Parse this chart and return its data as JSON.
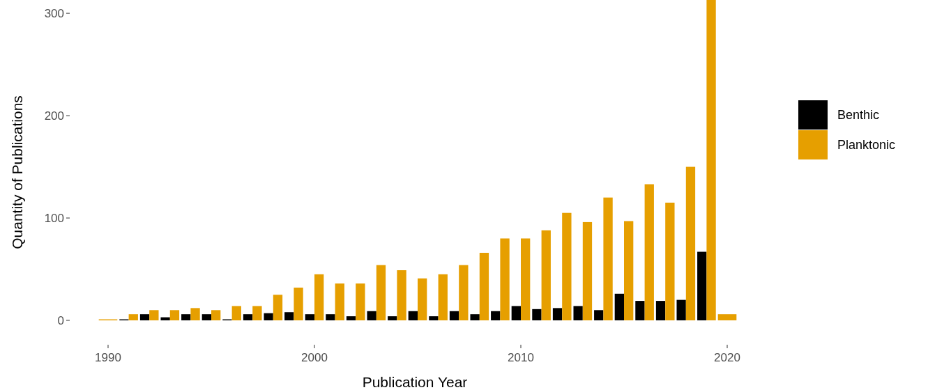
{
  "chart_data": {
    "type": "bar",
    "xlabel": "Publication Year",
    "ylabel": "Quantity of Publications",
    "x": [
      1990,
      1991,
      1992,
      1993,
      1994,
      1995,
      1996,
      1997,
      1998,
      1999,
      2000,
      2001,
      2002,
      2003,
      2004,
      2005,
      2006,
      2007,
      2008,
      2009,
      2010,
      2011,
      2012,
      2013,
      2014,
      2015,
      2016,
      2017,
      2018,
      2019,
      2020
    ],
    "series": [
      {
        "name": "Benthic",
        "color": "#000000",
        "values": [
          null,
          1,
          6,
          3,
          6,
          6,
          1,
          6,
          7,
          8,
          6,
          6,
          4,
          9,
          4,
          9,
          4,
          9,
          6,
          9,
          14,
          11,
          12,
          14,
          10,
          26,
          19,
          19,
          20,
          67,
          null
        ]
      },
      {
        "name": "Planktonic",
        "color": "#e69f00",
        "values": [
          1,
          6,
          10,
          10,
          12,
          10,
          14,
          14,
          25,
          32,
          45,
          36,
          36,
          54,
          49,
          41,
          45,
          54,
          66,
          80,
          80,
          88,
          105,
          96,
          120,
          97,
          133,
          115,
          150,
          313,
          6
        ]
      }
    ],
    "xlim": [
      1990,
      2020
    ],
    "xticks": [
      1990,
      2000,
      2010,
      2020
    ],
    "ylim": [
      0,
      313
    ],
    "yticks": [
      0,
      100,
      200,
      300
    ],
    "grid": false,
    "legend": "right"
  }
}
